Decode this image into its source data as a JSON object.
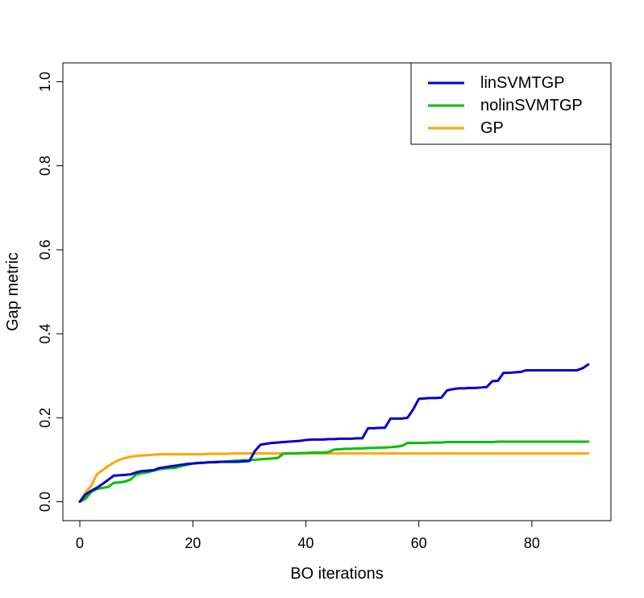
{
  "chart_data": {
    "type": "line",
    "title": "",
    "xlabel": "BO iterations",
    "ylabel": "Gap metric",
    "xlim": [
      -3,
      94
    ],
    "ylim": [
      -0.045,
      1.045
    ],
    "xticks": [
      0,
      20,
      40,
      60,
      80
    ],
    "xtick_labels": [
      "0",
      "20",
      "40",
      "60",
      "80"
    ],
    "yticks": [
      0.0,
      0.2,
      0.4,
      0.6,
      0.8,
      1.0
    ],
    "ytick_labels": [
      "0.0",
      "0.2",
      "0.4",
      "0.6",
      "0.8",
      "1.0"
    ],
    "grid": false,
    "legend_position": "top-right",
    "series": [
      {
        "name": "linSVMTGP",
        "color": "#0000CD",
        "x": [
          0,
          1,
          2,
          3,
          4,
          5,
          6,
          7,
          8,
          9,
          10,
          11,
          12,
          13,
          14,
          15,
          16,
          17,
          18,
          19,
          20,
          21,
          22,
          23,
          24,
          25,
          26,
          27,
          28,
          29,
          30,
          31,
          32,
          33,
          34,
          35,
          36,
          37,
          38,
          39,
          40,
          41,
          42,
          43,
          44,
          45,
          46,
          47,
          48,
          49,
          50,
          51,
          52,
          53,
          54,
          55,
          56,
          57,
          58,
          59,
          60,
          61,
          62,
          63,
          64,
          65,
          66,
          67,
          68,
          69,
          70,
          71,
          72,
          73,
          74,
          75,
          76,
          77,
          78,
          79,
          80,
          81,
          82,
          83,
          84,
          85,
          86,
          87,
          88,
          89,
          90
        ],
        "y": [
          0.0,
          0.017,
          0.026,
          0.033,
          0.042,
          0.052,
          0.062,
          0.063,
          0.064,
          0.065,
          0.07,
          0.073,
          0.074,
          0.075,
          0.08,
          0.082,
          0.084,
          0.086,
          0.088,
          0.09,
          0.091,
          0.092,
          0.093,
          0.094,
          0.094,
          0.095,
          0.095,
          0.095,
          0.095,
          0.096,
          0.097,
          0.121,
          0.136,
          0.138,
          0.14,
          0.141,
          0.142,
          0.143,
          0.144,
          0.145,
          0.147,
          0.148,
          0.148,
          0.148,
          0.149,
          0.149,
          0.15,
          0.15,
          0.15,
          0.151,
          0.151,
          0.175,
          0.175,
          0.176,
          0.176,
          0.198,
          0.198,
          0.198,
          0.2,
          0.22,
          0.245,
          0.246,
          0.247,
          0.247,
          0.248,
          0.265,
          0.268,
          0.27,
          0.27,
          0.271,
          0.271,
          0.272,
          0.273,
          0.287,
          0.288,
          0.307,
          0.307,
          0.308,
          0.309,
          0.313,
          0.313,
          0.313,
          0.313,
          0.313,
          0.313,
          0.313,
          0.313,
          0.313,
          0.313,
          0.318,
          0.327
        ]
      },
      {
        "name": "nolinSVMTGP",
        "color": "#00C000",
        "x": [
          0,
          1,
          2,
          3,
          4,
          5,
          6,
          7,
          8,
          9,
          10,
          11,
          12,
          13,
          14,
          15,
          16,
          17,
          18,
          19,
          20,
          21,
          22,
          23,
          24,
          25,
          26,
          27,
          28,
          29,
          30,
          31,
          32,
          33,
          34,
          35,
          36,
          37,
          38,
          39,
          40,
          41,
          42,
          43,
          44,
          45,
          46,
          47,
          48,
          49,
          50,
          51,
          52,
          53,
          54,
          55,
          56,
          57,
          58,
          59,
          60,
          61,
          62,
          63,
          64,
          65,
          66,
          67,
          68,
          69,
          70,
          71,
          72,
          73,
          74,
          75,
          76,
          77,
          78,
          79,
          80,
          81,
          82,
          83,
          84,
          85,
          86,
          87,
          88,
          89,
          90
        ],
        "y": [
          0.0,
          0.007,
          0.023,
          0.03,
          0.033,
          0.035,
          0.045,
          0.046,
          0.048,
          0.053,
          0.065,
          0.068,
          0.07,
          0.074,
          0.077,
          0.079,
          0.08,
          0.081,
          0.085,
          0.088,
          0.091,
          0.093,
          0.093,
          0.094,
          0.095,
          0.095,
          0.096,
          0.097,
          0.098,
          0.099,
          0.099,
          0.1,
          0.101,
          0.102,
          0.103,
          0.104,
          0.114,
          0.115,
          0.115,
          0.116,
          0.116,
          0.117,
          0.117,
          0.117,
          0.118,
          0.124,
          0.125,
          0.126,
          0.126,
          0.127,
          0.127,
          0.128,
          0.128,
          0.129,
          0.129,
          0.13,
          0.131,
          0.133,
          0.14,
          0.14,
          0.14,
          0.14,
          0.141,
          0.141,
          0.141,
          0.142,
          0.142,
          0.142,
          0.142,
          0.142,
          0.142,
          0.142,
          0.142,
          0.142,
          0.143,
          0.143,
          0.143,
          0.143,
          0.143,
          0.143,
          0.143,
          0.143,
          0.143,
          0.143,
          0.143,
          0.143,
          0.143,
          0.143,
          0.143,
          0.143,
          0.143
        ]
      },
      {
        "name": "GP",
        "color": "#FFA500",
        "x": [
          0,
          1,
          2,
          3,
          4,
          5,
          6,
          7,
          8,
          9,
          10,
          11,
          12,
          13,
          14,
          15,
          16,
          17,
          18,
          19,
          20,
          21,
          22,
          23,
          24,
          25,
          26,
          27,
          28,
          29,
          30,
          31,
          32,
          33,
          34,
          35,
          36,
          37,
          38,
          39,
          40,
          41,
          42,
          43,
          44,
          45,
          46,
          47,
          48,
          49,
          50,
          51,
          52,
          53,
          54,
          55,
          56,
          57,
          58,
          59,
          60,
          61,
          62,
          63,
          64,
          65,
          66,
          67,
          68,
          69,
          70,
          71,
          72,
          73,
          74,
          75,
          76,
          77,
          78,
          79,
          80,
          81,
          82,
          83,
          84,
          85,
          86,
          87,
          88,
          89,
          90
        ],
        "y": [
          0.0,
          0.022,
          0.038,
          0.065,
          0.075,
          0.085,
          0.093,
          0.1,
          0.104,
          0.107,
          0.109,
          0.11,
          0.111,
          0.112,
          0.113,
          0.113,
          0.113,
          0.113,
          0.113,
          0.113,
          0.113,
          0.113,
          0.113,
          0.114,
          0.114,
          0.114,
          0.114,
          0.115,
          0.115,
          0.115,
          0.115,
          0.115,
          0.115,
          0.115,
          0.115,
          0.115,
          0.115,
          0.115,
          0.115,
          0.115,
          0.115,
          0.115,
          0.115,
          0.115,
          0.115,
          0.115,
          0.115,
          0.115,
          0.115,
          0.115,
          0.115,
          0.115,
          0.115,
          0.115,
          0.115,
          0.115,
          0.115,
          0.115,
          0.115,
          0.115,
          0.115,
          0.115,
          0.115,
          0.115,
          0.115,
          0.115,
          0.115,
          0.115,
          0.115,
          0.115,
          0.115,
          0.115,
          0.115,
          0.115,
          0.115,
          0.115,
          0.115,
          0.115,
          0.115,
          0.115,
          0.115,
          0.115,
          0.115,
          0.115,
          0.115,
          0.115,
          0.115,
          0.115,
          0.115,
          0.115,
          0.115
        ]
      }
    ]
  }
}
